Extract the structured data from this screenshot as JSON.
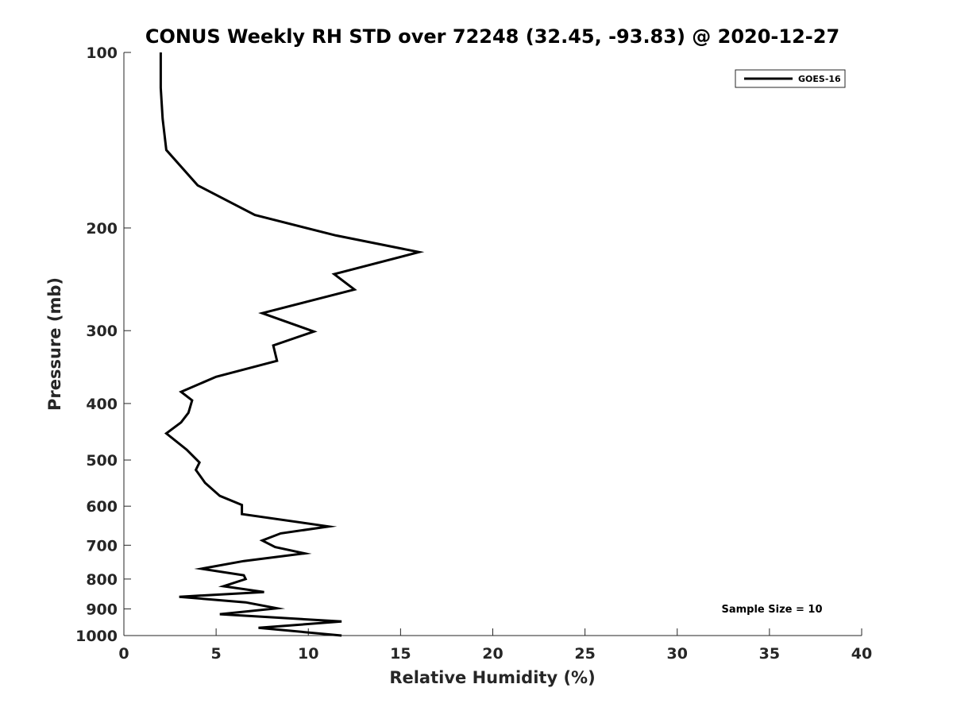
{
  "chart_data": {
    "type": "line",
    "title": "CONUS Weekly RH STD over 72248 (32.45, -93.83) @ 2020-12-27",
    "xlabel": "Relative Humidity (%)",
    "ylabel": "Pressure (mb)",
    "xlim": [
      0,
      40
    ],
    "ylim": [
      100,
      1000
    ],
    "y_scale": "log",
    "y_reversed": true,
    "x_ticks": [
      0,
      5,
      10,
      15,
      20,
      25,
      30,
      35,
      40
    ],
    "y_ticks": [
      100,
      200,
      300,
      400,
      500,
      600,
      700,
      800,
      900,
      1000
    ],
    "grid": false,
    "legend_position": "top-right",
    "annotation": "Sample Size = 10",
    "series": [
      {
        "name": "GOES-16",
        "color": "#000000",
        "points": [
          [
            2.0,
            100
          ],
          [
            2.0,
            115
          ],
          [
            2.1,
            130
          ],
          [
            2.3,
            147
          ],
          [
            4.0,
            169
          ],
          [
            7.1,
            190
          ],
          [
            11.5,
            206
          ],
          [
            16.0,
            220
          ],
          [
            11.4,
            240
          ],
          [
            12.5,
            255
          ],
          [
            7.5,
            280
          ],
          [
            10.3,
            301
          ],
          [
            8.1,
            318
          ],
          [
            8.3,
            338
          ],
          [
            5.0,
            360
          ],
          [
            3.1,
            382
          ],
          [
            3.7,
            395
          ],
          [
            3.5,
            415
          ],
          [
            3.1,
            431
          ],
          [
            2.3,
            450
          ],
          [
            3.4,
            480
          ],
          [
            4.1,
            505
          ],
          [
            3.9,
            520
          ],
          [
            4.4,
            547
          ],
          [
            5.2,
            576
          ],
          [
            6.4,
            597
          ],
          [
            6.4,
            619
          ],
          [
            11.1,
            650
          ],
          [
            8.5,
            668
          ],
          [
            7.5,
            687
          ],
          [
            8.2,
            705
          ],
          [
            9.8,
            723
          ],
          [
            6.5,
            745
          ],
          [
            4.2,
            768
          ],
          [
            6.5,
            788
          ],
          [
            6.6,
            800
          ],
          [
            5.4,
            823
          ],
          [
            7.6,
            842
          ],
          [
            3.0,
            858
          ],
          [
            6.6,
            877
          ],
          [
            8.3,
            898
          ],
          [
            5.2,
            919
          ],
          [
            11.8,
            946
          ],
          [
            7.3,
            970
          ],
          [
            11.8,
            1000
          ]
        ]
      }
    ]
  }
}
